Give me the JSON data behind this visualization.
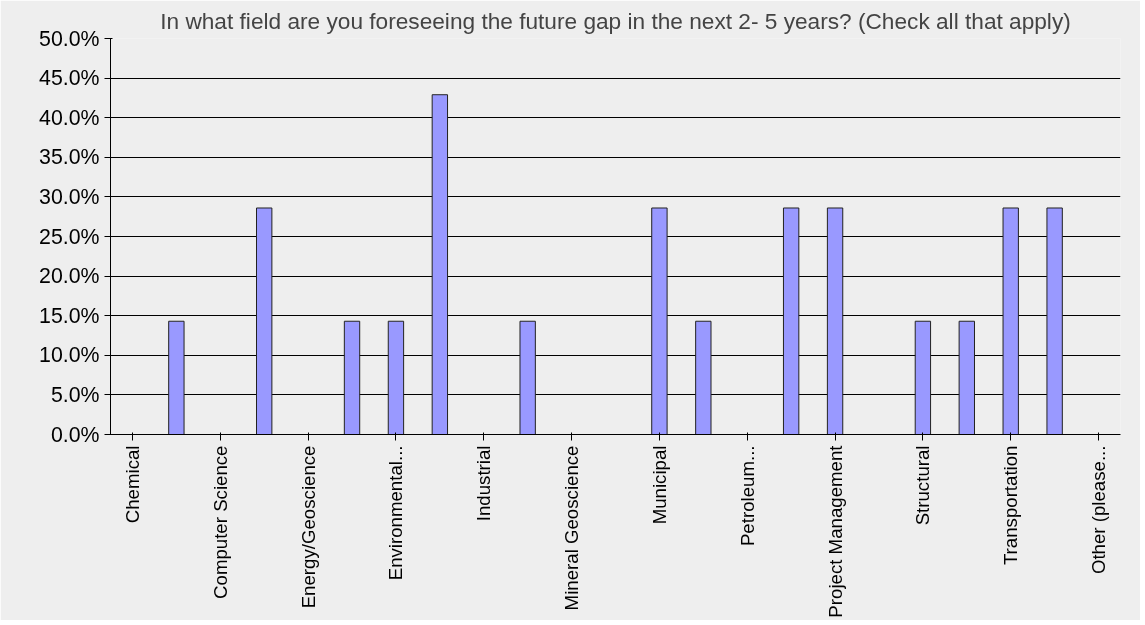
{
  "chart_data": {
    "type": "bar",
    "title": "In what field are you foreseeing the future gap in the next 2- 5 years? (Check all that apply)",
    "categories": [
      "Chemical",
      null,
      "Computer Science",
      null,
      "Energy/Geoscience",
      null,
      "Environmental...",
      null,
      "Industrial",
      null,
      "Mineral Geoscience",
      null,
      "Municipal",
      null,
      "Petroleum...",
      null,
      "Project Management",
      null,
      "Structural",
      null,
      "Transportation",
      null,
      "Other (please..."
    ],
    "values": [
      0,
      14.3,
      0,
      28.6,
      0,
      14.3,
      14.3,
      42.9,
      0,
      14.3,
      0,
      0,
      28.6,
      14.3,
      0,
      28.6,
      28.6,
      0,
      14.3,
      14.3,
      28.6,
      28.6,
      0
    ],
    "color": "#9999ff",
    "ylim": [
      0,
      50
    ],
    "yticks": [
      {
        "value": 0,
        "label": "0.0%"
      },
      {
        "value": 5,
        "label": "5.0%"
      },
      {
        "value": 10,
        "label": "10.0%"
      },
      {
        "value": 15,
        "label": "15.0%"
      },
      {
        "value": 20,
        "label": "20.0%"
      },
      {
        "value": 25,
        "label": "25.0%"
      },
      {
        "value": 30,
        "label": "30.0%"
      },
      {
        "value": 35,
        "label": "35.0%"
      },
      {
        "value": 40,
        "label": "40.0%"
      },
      {
        "value": 45,
        "label": "45.0%"
      },
      {
        "value": 50,
        "label": "50.0%"
      }
    ],
    "grid": "y"
  }
}
